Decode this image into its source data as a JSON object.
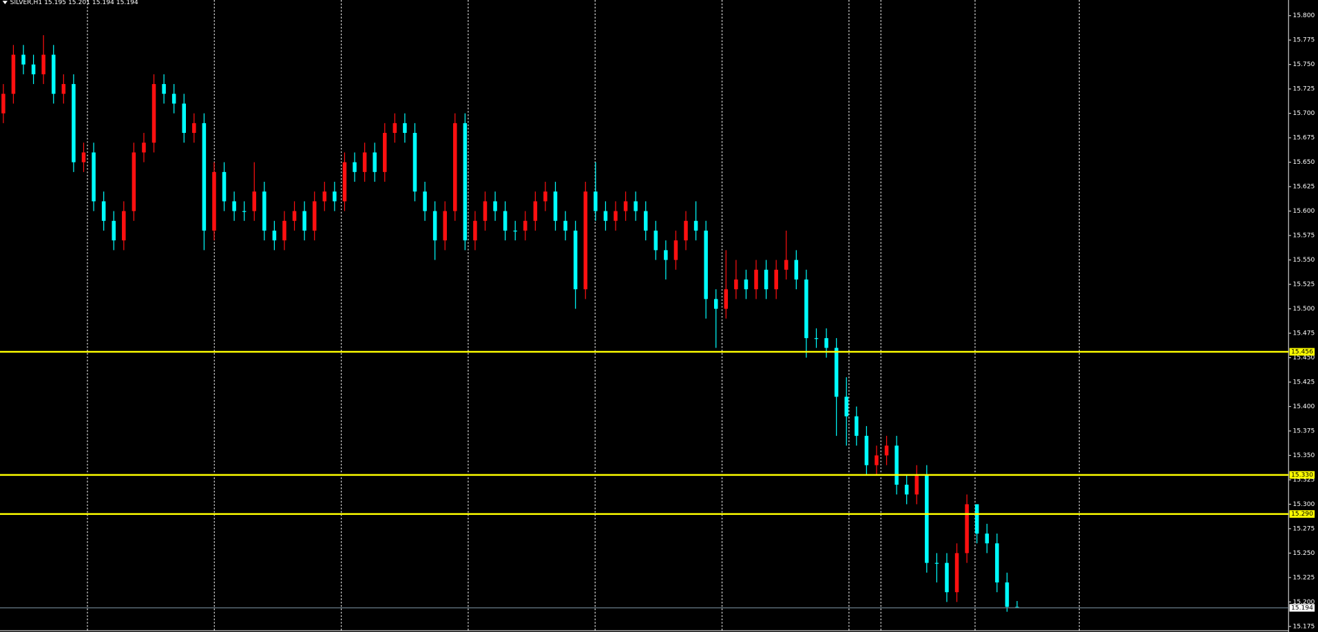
{
  "chart_data": {
    "type": "candlestick",
    "title": "SILVER,H1  15.195 15.201 15.194 15.194",
    "up_color": "#ff1010",
    "down_color": "#00ffff",
    "level_color": "#ffff00",
    "current_color": "#6b7f8c",
    "ylim": [
      15.171,
      15.816
    ],
    "yticks": [
      {
        "value": 15.175,
        "label": "15.175"
      },
      {
        "value": 15.2,
        "label": "15.200"
      },
      {
        "value": 15.225,
        "label": "15.225"
      },
      {
        "value": 15.25,
        "label": "15.250"
      },
      {
        "value": 15.275,
        "label": "15.275"
      },
      {
        "value": 15.3,
        "label": "15.300"
      },
      {
        "value": 15.325,
        "label": "15.325"
      },
      {
        "value": 15.35,
        "label": "15.350"
      },
      {
        "value": 15.375,
        "label": "15.375"
      },
      {
        "value": 15.4,
        "label": "15.400"
      },
      {
        "value": 15.425,
        "label": "15.425"
      },
      {
        "value": 15.45,
        "label": "15.450"
      },
      {
        "value": 15.475,
        "label": "15.475"
      },
      {
        "value": 15.5,
        "label": "15.500"
      },
      {
        "value": 15.525,
        "label": "15.525"
      },
      {
        "value": 15.55,
        "label": "15.550"
      },
      {
        "value": 15.575,
        "label": "15.575"
      },
      {
        "value": 15.6,
        "label": "15.600"
      },
      {
        "value": 15.625,
        "label": "15.625"
      },
      {
        "value": 15.65,
        "label": "15.650"
      },
      {
        "value": 15.675,
        "label": "15.675"
      },
      {
        "value": 15.7,
        "label": "15.700"
      },
      {
        "value": 15.725,
        "label": "15.725"
      },
      {
        "value": 15.75,
        "label": "15.750"
      },
      {
        "value": 15.775,
        "label": "15.775"
      },
      {
        "value": 15.8,
        "label": "15.800"
      }
    ],
    "levels": [
      15.456,
      {
        "value": 15.33,
        "label": "15.330"
      },
      {
        "value": 15.29,
        "label": "15.290"
      }
    ],
    "current_price": 15.194,
    "open": [
      15.7,
      15.72,
      15.76,
      15.75,
      15.74,
      15.76,
      15.72,
      15.73,
      15.65,
      15.66,
      15.61,
      15.59,
      15.57,
      15.6,
      15.66,
      15.67,
      15.73,
      15.72,
      15.71,
      15.68,
      15.69,
      15.58,
      15.64,
      15.61,
      15.6,
      15.6,
      15.62,
      15.58,
      15.57,
      15.59,
      15.6,
      15.58,
      15.61,
      15.62,
      15.61,
      15.65,
      15.64,
      15.66,
      15.64,
      15.68,
      15.69,
      15.68,
      15.62,
      15.6,
      15.57,
      15.6,
      15.69,
      15.57,
      15.59,
      15.61,
      15.6,
      15.58,
      15.58,
      15.59,
      15.61,
      15.62,
      15.59,
      15.58,
      15.52,
      15.62,
      15.6,
      15.59,
      15.6,
      15.61,
      15.6,
      15.58,
      15.56,
      15.55,
      15.57,
      15.59,
      15.58,
      15.51,
      15.5,
      15.52,
      15.53,
      15.52,
      15.54,
      15.52,
      15.54,
      15.55,
      15.53,
      15.47,
      15.47,
      15.46,
      15.41,
      15.39,
      15.37,
      15.34,
      15.35,
      15.36,
      15.32,
      15.31,
      15.33,
      15.24,
      15.24,
      15.21,
      15.25,
      15.3,
      15.27,
      15.26,
      15.22,
      15.195
    ],
    "high": [
      15.73,
      15.77,
      15.77,
      15.76,
      15.78,
      15.77,
      15.74,
      15.74,
      15.67,
      15.67,
      15.62,
      15.6,
      15.61,
      15.67,
      15.68,
      15.74,
      15.74,
      15.73,
      15.72,
      15.7,
      15.7,
      15.65,
      15.65,
      15.62,
      15.61,
      15.65,
      15.63,
      15.59,
      15.6,
      15.61,
      15.61,
      15.62,
      15.63,
      15.63,
      15.66,
      15.66,
      15.67,
      15.67,
      15.69,
      15.7,
      15.7,
      15.69,
      15.63,
      15.61,
      15.61,
      15.7,
      15.7,
      15.6,
      15.62,
      15.62,
      15.61,
      15.59,
      15.6,
      15.62,
      15.63,
      15.63,
      15.6,
      15.59,
      15.63,
      15.65,
      15.61,
      15.61,
      15.62,
      15.62,
      15.61,
      15.59,
      15.57,
      15.58,
      15.6,
      15.61,
      15.59,
      15.52,
      15.56,
      15.55,
      15.54,
      15.55,
      15.55,
      15.55,
      15.58,
      15.56,
      15.54,
      15.48,
      15.48,
      15.47,
      15.43,
      15.4,
      15.38,
      15.36,
      15.37,
      15.37,
      15.33,
      15.34,
      15.34,
      15.25,
      15.25,
      15.26,
      15.31,
      15.3,
      15.28,
      15.27,
      15.23,
      15.201
    ],
    "low": [
      15.69,
      15.71,
      15.74,
      15.73,
      15.73,
      15.71,
      15.71,
      15.64,
      15.64,
      15.6,
      15.58,
      15.56,
      15.56,
      15.59,
      15.65,
      15.66,
      15.71,
      15.7,
      15.67,
      15.67,
      15.56,
      15.57,
      15.6,
      15.59,
      15.59,
      15.59,
      15.57,
      15.56,
      15.56,
      15.58,
      15.57,
      15.57,
      15.6,
      15.6,
      15.6,
      15.63,
      15.63,
      15.63,
      15.63,
      15.67,
      15.67,
      15.61,
      15.59,
      15.55,
      15.56,
      15.59,
      15.56,
      15.56,
      15.58,
      15.59,
      15.57,
      15.57,
      15.57,
      15.58,
      15.6,
      15.58,
      15.57,
      15.5,
      15.51,
      15.59,
      15.58,
      15.58,
      15.59,
      15.59,
      15.57,
      15.55,
      15.53,
      15.54,
      15.56,
      15.57,
      15.49,
      15.46,
      15.49,
      15.51,
      15.51,
      15.51,
      15.51,
      15.51,
      15.53,
      15.52,
      15.45,
      15.46,
      15.45,
      15.37,
      15.36,
      15.36,
      15.33,
      15.33,
      15.34,
      15.31,
      15.3,
      15.3,
      15.23,
      15.22,
      15.2,
      15.2,
      15.24,
      15.26,
      15.25,
      15.21,
      15.19,
      15.194
    ],
    "close": [
      15.72,
      15.76,
      15.75,
      15.74,
      15.76,
      15.72,
      15.73,
      15.65,
      15.66,
      15.61,
      15.59,
      15.57,
      15.6,
      15.66,
      15.67,
      15.73,
      15.72,
      15.71,
      15.68,
      15.69,
      15.58,
      15.64,
      15.61,
      15.6,
      15.6,
      15.62,
      15.58,
      15.57,
      15.59,
      15.6,
      15.58,
      15.61,
      15.62,
      15.61,
      15.65,
      15.64,
      15.66,
      15.64,
      15.68,
      15.69,
      15.68,
      15.62,
      15.6,
      15.57,
      15.6,
      15.69,
      15.57,
      15.59,
      15.61,
      15.6,
      15.58,
      15.58,
      15.59,
      15.61,
      15.62,
      15.59,
      15.58,
      15.52,
      15.62,
      15.6,
      15.59,
      15.6,
      15.61,
      15.6,
      15.58,
      15.56,
      15.55,
      15.57,
      15.59,
      15.58,
      15.51,
      15.5,
      15.52,
      15.53,
      15.52,
      15.54,
      15.52,
      15.54,
      15.55,
      15.53,
      15.47,
      15.47,
      15.46,
      15.41,
      15.39,
      15.37,
      15.34,
      15.35,
      15.36,
      15.32,
      15.31,
      15.33,
      15.24,
      15.24,
      15.21,
      15.25,
      15.3,
      15.27,
      15.26,
      15.22,
      15.195,
      15.194
    ]
  }
}
